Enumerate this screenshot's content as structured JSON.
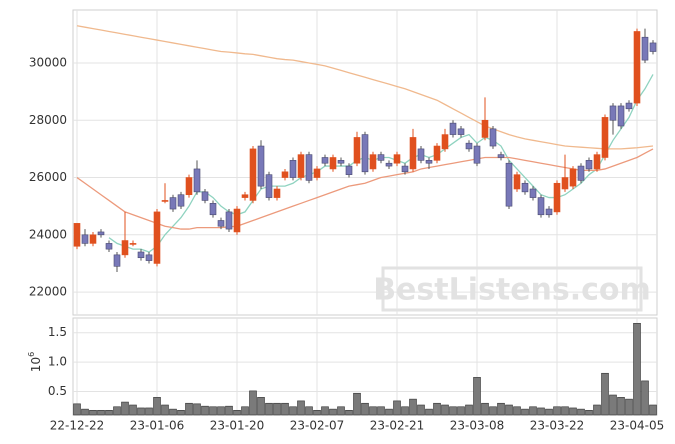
{
  "chart_data": [
    {
      "type": "candlestick",
      "categories": [
        "22-12-22",
        null,
        null,
        null,
        null,
        null,
        null,
        null,
        null,
        null,
        "23-01-06",
        null,
        null,
        null,
        null,
        null,
        null,
        null,
        null,
        null,
        "23-01-20",
        null,
        null,
        null,
        null,
        null,
        null,
        null,
        null,
        null,
        "23-02-07",
        null,
        null,
        null,
        null,
        null,
        null,
        null,
        null,
        null,
        "23-02-21",
        null,
        null,
        null,
        null,
        null,
        null,
        null,
        null,
        null,
        "23-03-08",
        null,
        null,
        null,
        null,
        null,
        null,
        null,
        null,
        null,
        "23-03-22",
        null,
        null,
        null,
        null,
        null,
        null,
        null,
        null,
        null,
        "23-04-05",
        null,
        null
      ],
      "open": [
        23600,
        24000,
        23700,
        24100,
        23700,
        23300,
        23300,
        23700,
        23400,
        23300,
        23000,
        25200,
        25300,
        25400,
        25400,
        26300,
        25500,
        25100,
        24500,
        24800,
        24100,
        25300,
        25200,
        27100,
        26100,
        25300,
        26000,
        26600,
        26000,
        26800,
        26000,
        26700,
        26300,
        26600,
        26400,
        26500,
        27500,
        26300,
        26800,
        26500,
        26500,
        26400,
        26300,
        27000,
        26600,
        26600,
        27000,
        27900,
        27700,
        27200,
        27100,
        27400,
        27700,
        26800,
        26500,
        25600,
        25800,
        25600,
        25300,
        24900,
        24800,
        25600,
        25700,
        26400,
        26600,
        26300,
        26700,
        28500,
        28500,
        28600,
        28600,
        30900,
        30700
      ],
      "high": [
        24400,
        24200,
        24100,
        24200,
        23800,
        23400,
        24800,
        23800,
        23500,
        23400,
        24900,
        25800,
        25400,
        25500,
        26100,
        26600,
        25600,
        25200,
        24600,
        24900,
        25000,
        25500,
        27100,
        27300,
        26200,
        25700,
        26300,
        26700,
        26900,
        26900,
        26400,
        26800,
        26800,
        26700,
        26500,
        27600,
        27600,
        26900,
        26900,
        26600,
        26900,
        26500,
        27700,
        27100,
        26700,
        27200,
        27700,
        28000,
        27800,
        27300,
        27200,
        28800,
        27800,
        26900,
        26600,
        26200,
        25900,
        25700,
        25400,
        25000,
        25900,
        26800,
        26400,
        26500,
        26700,
        26900,
        28200,
        28600,
        28600,
        28700,
        31200,
        31200,
        30800
      ],
      "low": [
        23500,
        23600,
        23600,
        23900,
        23400,
        22700,
        23200,
        23600,
        23100,
        23000,
        22900,
        25100,
        24800,
        24900,
        25300,
        25400,
        25100,
        24600,
        24200,
        24100,
        24000,
        25200,
        25100,
        25600,
        25200,
        25200,
        25900,
        25900,
        25900,
        25800,
        25900,
        26400,
        26200,
        26400,
        26000,
        26400,
        26100,
        26200,
        26500,
        26300,
        26400,
        26100,
        26200,
        26500,
        26300,
        26500,
        26900,
        27400,
        27400,
        26900,
        26400,
        27300,
        27000,
        26600,
        24900,
        25500,
        25400,
        25200,
        24600,
        24600,
        24700,
        25500,
        25600,
        25800,
        26200,
        26200,
        26600,
        27500,
        27700,
        28300,
        28500,
        30000,
        30300
      ],
      "close": [
        24400,
        23700,
        24000,
        24000,
        23500,
        22900,
        23800,
        23700,
        23200,
        23100,
        24800,
        25200,
        24900,
        25000,
        26000,
        25500,
        25200,
        24700,
        24300,
        24200,
        24900,
        25400,
        27000,
        25700,
        25300,
        25600,
        26200,
        26000,
        26800,
        25900,
        26300,
        26500,
        26700,
        26500,
        26100,
        27400,
        26200,
        26800,
        26600,
        26400,
        26800,
        26200,
        27400,
        26600,
        26500,
        27100,
        27500,
        27500,
        27500,
        27000,
        26500,
        28000,
        27100,
        26700,
        25000,
        26100,
        25500,
        25300,
        24700,
        24700,
        25800,
        26000,
        26300,
        25900,
        26300,
        26800,
        28100,
        28000,
        27800,
        28400,
        31100,
        30100,
        30400
      ],
      "up_color": "#e0501e",
      "down_color": "#7878b8",
      "lines": [
        {
          "color": "#8fd3c0",
          "values": [
            null,
            null,
            null,
            null,
            23900,
            23700,
            23600,
            23500,
            23500,
            23400,
            23600,
            24000,
            24300,
            24600,
            25000,
            25500,
            25500,
            25300,
            25000,
            24800,
            24700,
            24800,
            25200,
            25600,
            25700,
            25700,
            25700,
            25800,
            26000,
            26100,
            26200,
            26400,
            26400,
            26400,
            26400,
            26600,
            26700,
            26600,
            26700,
            26700,
            26600,
            26500,
            26700,
            26800,
            26700,
            26800,
            27000,
            27200,
            27400,
            27500,
            27200,
            27400,
            27300,
            27100,
            26600,
            26300,
            26000,
            25700,
            25400,
            25300,
            25300,
            25400,
            25600,
            25800,
            26100,
            26300,
            26800,
            27300,
            27700,
            28100,
            28700,
            29100,
            29600
          ]
        },
        {
          "color": "#ec9a7c",
          "values": [
            26000,
            25800,
            25600,
            25400,
            25200,
            25000,
            24800,
            24700,
            24600,
            24500,
            24400,
            24300,
            24250,
            24200,
            24200,
            24250,
            24250,
            24250,
            24250,
            24280,
            24300,
            24400,
            24500,
            24600,
            24700,
            24800,
            24900,
            25000,
            25100,
            25200,
            25300,
            25400,
            25500,
            25600,
            25700,
            25750,
            25800,
            25900,
            26000,
            26050,
            26100,
            26150,
            26200,
            26300,
            26350,
            26400,
            26450,
            26500,
            26550,
            26600,
            26650,
            26700,
            26700,
            26700,
            26700,
            26650,
            26600,
            26550,
            26500,
            26450,
            26400,
            26350,
            26300,
            26250,
            26250,
            26250,
            26300,
            26400,
            26500,
            26600,
            26700,
            26850,
            27000
          ]
        },
        {
          "color": "#f0b98e",
          "values": [
            31300,
            31250,
            31200,
            31150,
            31100,
            31050,
            31000,
            30950,
            30900,
            30850,
            30800,
            30750,
            30700,
            30650,
            30600,
            30550,
            30500,
            30450,
            30400,
            30380,
            30350,
            30320,
            30300,
            30250,
            30200,
            30150,
            30120,
            30100,
            30050,
            30000,
            29950,
            29900,
            29820,
            29740,
            29660,
            29580,
            29500,
            29420,
            29340,
            29260,
            29180,
            29100,
            29000,
            28900,
            28800,
            28700,
            28550,
            28400,
            28250,
            28100,
            27950,
            27800,
            27700,
            27600,
            27500,
            27420,
            27350,
            27300,
            27250,
            27200,
            27150,
            27100,
            27080,
            27060,
            27040,
            27020,
            27000,
            27000,
            27000,
            27020,
            27040,
            27070,
            27100
          ]
        }
      ],
      "ylim": [
        21200,
        31850
      ],
      "yticks": [
        22000,
        24000,
        26000,
        28000,
        30000
      ],
      "grid": true,
      "watermark": "BestListens.com"
    },
    {
      "type": "bar",
      "values": [
        0.29,
        0.2,
        0.18,
        0.18,
        0.18,
        0.24,
        0.32,
        0.27,
        0.22,
        0.22,
        0.4,
        0.27,
        0.2,
        0.18,
        0.3,
        0.29,
        0.25,
        0.24,
        0.24,
        0.25,
        0.18,
        0.24,
        0.51,
        0.4,
        0.3,
        0.3,
        0.3,
        0.24,
        0.34,
        0.24,
        0.18,
        0.24,
        0.2,
        0.24,
        0.18,
        0.47,
        0.3,
        0.24,
        0.24,
        0.2,
        0.34,
        0.24,
        0.37,
        0.27,
        0.2,
        0.3,
        0.27,
        0.24,
        0.24,
        0.27,
        0.74,
        0.3,
        0.24,
        0.3,
        0.27,
        0.24,
        0.2,
        0.24,
        0.22,
        0.2,
        0.24,
        0.24,
        0.22,
        0.2,
        0.18,
        0.27,
        0.81,
        0.44,
        0.4,
        0.37,
        1.66,
        0.68,
        0.27
      ],
      "color": "#7a7a7a",
      "ylim": [
        0.1,
        1.75
      ],
      "yticks": [
        0.5,
        {
          "value": 1,
          "label": "1.0"
        },
        1.5
      ],
      "grid": true,
      "scale_label": {
        "base": "10",
        "exponent": "6"
      }
    }
  ]
}
